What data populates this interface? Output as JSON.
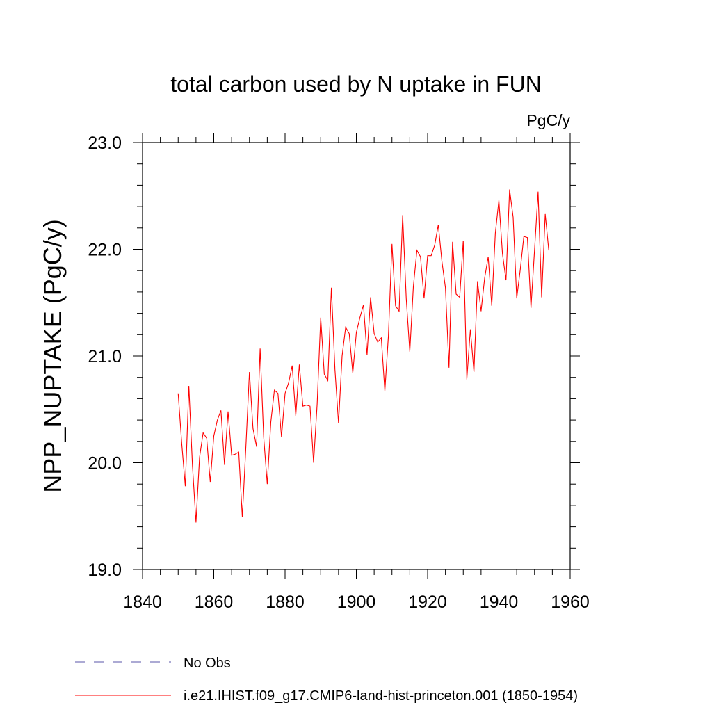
{
  "chart_data": {
    "type": "line",
    "title": "total carbon used by N uptake in FUN",
    "units_label": "PgC/y",
    "ylabel": "NPP_NUPTAKE  (PgC/y)",
    "xlabel": "",
    "xlim": [
      1840,
      1960
    ],
    "ylim": [
      19.0,
      23.0
    ],
    "xticks": [
      1840,
      1860,
      1880,
      1900,
      1920,
      1940,
      1960
    ],
    "xtick_labels": [
      "1840",
      "1860",
      "1880",
      "1900",
      "1920",
      "1940",
      "1960"
    ],
    "yticks": [
      19.0,
      20.0,
      21.0,
      22.0,
      23.0
    ],
    "ytick_labels": [
      "19.0",
      "20.0",
      "21.0",
      "22.0",
      "23.0"
    ],
    "x_minor_step": 5,
    "y_minor_step": 0.2,
    "grid": false,
    "legend_position": "bottom-left",
    "series": [
      {
        "name": "i.e21.IHIST.f09_g17.CMIP6-land-hist-princeton.001 (1850-1954)",
        "color": "#ff0000",
        "style": "solid",
        "x": [
          1850,
          1851,
          1852,
          1853,
          1854,
          1855,
          1856,
          1857,
          1858,
          1859,
          1860,
          1861,
          1862,
          1863,
          1864,
          1865,
          1866,
          1867,
          1868,
          1869,
          1870,
          1871,
          1872,
          1873,
          1874,
          1875,
          1876,
          1877,
          1878,
          1879,
          1880,
          1881,
          1882,
          1883,
          1884,
          1885,
          1886,
          1887,
          1888,
          1889,
          1890,
          1891,
          1892,
          1893,
          1894,
          1895,
          1896,
          1897,
          1898,
          1899,
          1900,
          1901,
          1902,
          1903,
          1904,
          1905,
          1906,
          1907,
          1908,
          1909,
          1910,
          1911,
          1912,
          1913,
          1914,
          1915,
          1916,
          1917,
          1918,
          1919,
          1920,
          1921,
          1922,
          1923,
          1924,
          1925,
          1926,
          1927,
          1928,
          1929,
          1930,
          1931,
          1932,
          1933,
          1934,
          1935,
          1936,
          1937,
          1938,
          1939,
          1940,
          1941,
          1942,
          1943,
          1944,
          1945,
          1946,
          1947,
          1948,
          1949,
          1950,
          1951,
          1952,
          1953,
          1954
        ],
        "values": [
          20.65,
          20.18,
          19.78,
          20.72,
          19.98,
          19.44,
          20.05,
          20.28,
          20.23,
          19.82,
          20.25,
          20.4,
          20.49,
          19.98,
          20.48,
          20.07,
          20.08,
          20.1,
          19.49,
          20.15,
          20.85,
          20.32,
          20.15,
          21.07,
          20.24,
          19.8,
          20.38,
          20.68,
          20.65,
          20.24,
          20.65,
          20.75,
          20.91,
          20.44,
          20.92,
          20.53,
          20.54,
          20.53,
          20.0,
          20.55,
          21.36,
          20.83,
          20.77,
          21.64,
          20.87,
          20.37,
          21.0,
          21.27,
          21.21,
          20.84,
          21.22,
          21.36,
          21.48,
          21.01,
          21.55,
          21.21,
          21.13,
          21.17,
          20.67,
          21.19,
          22.05,
          21.47,
          21.42,
          22.32,
          21.54,
          21.04,
          21.65,
          21.99,
          21.93,
          21.54,
          21.94,
          21.94,
          22.04,
          22.23,
          21.89,
          21.64,
          20.89,
          22.07,
          21.58,
          21.55,
          22.08,
          20.78,
          21.25,
          20.85,
          21.7,
          21.42,
          21.73,
          21.93,
          21.47,
          22.15,
          22.46,
          21.96,
          21.71,
          22.56,
          22.3,
          21.54,
          21.81,
          22.12,
          22.11,
          21.45,
          21.99,
          22.54,
          21.55,
          22.33,
          21.99
        ]
      },
      {
        "name": "No Obs",
        "color": "#5a55aa",
        "style": "dashed",
        "x": [],
        "values": []
      }
    ]
  }
}
